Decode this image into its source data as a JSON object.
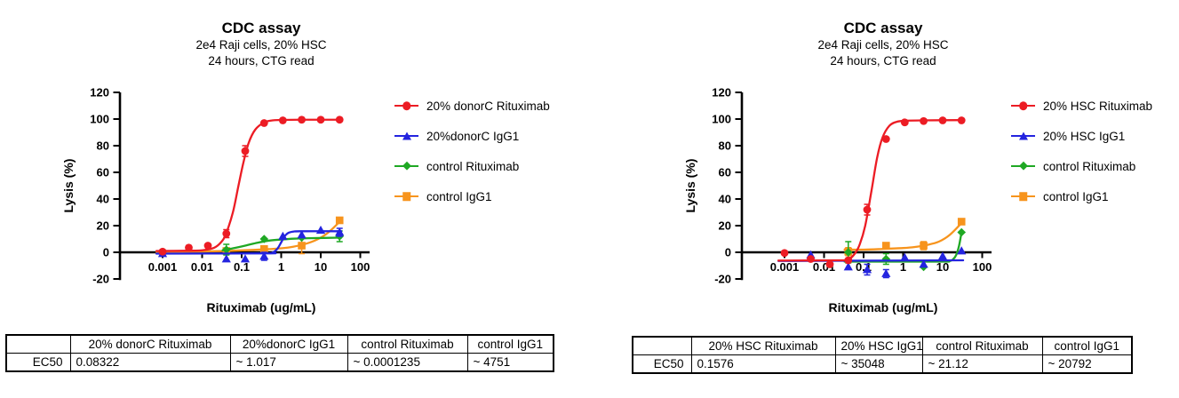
{
  "chart_data": [
    {
      "type": "line-scatter",
      "title": "CDC assay",
      "subtitle1": "2e4 Raji cells, 20% HSC",
      "subtitle2": "24 hours, CTG read",
      "xlabel": "Rituximab (ug/mL)",
      "ylabel": "Lysis (%)",
      "x_scale": "log",
      "xlim": [
        0.001,
        100
      ],
      "ylim": [
        -20,
        120
      ],
      "x_ticks": [
        0.001,
        0.01,
        0.1,
        1,
        10,
        100
      ],
      "x_tick_labels": [
        "0.001",
        "0.01",
        "0.1",
        "1",
        "10",
        "100"
      ],
      "y_ticks": [
        120,
        100,
        80,
        60,
        40,
        20,
        0,
        -20
      ],
      "grid": false,
      "legend_position": "right",
      "series": [
        {
          "name": "20% donorC Rituximab",
          "color": "#EC1C24",
          "marker": "circle",
          "points": [
            [
              0.001,
              0.5,
              0
            ],
            [
              0.0046,
              3.5,
              0
            ],
            [
              0.014,
              5,
              0
            ],
            [
              0.041,
              14,
              3
            ],
            [
              0.123,
              76,
              4
            ],
            [
              0.37,
              97,
              0
            ],
            [
              1.1,
              99,
              0
            ],
            [
              3.3,
              99.5,
              0
            ],
            [
              10,
              99.5,
              0
            ],
            [
              30,
              99.5,
              0
            ]
          ],
          "curve": [
            [
              0.0007,
              1
            ],
            [
              0.005,
              1.2
            ],
            [
              0.01,
              1.5
            ],
            [
              0.02,
              3.4
            ],
            [
              0.03,
              7.5
            ],
            [
              0.04,
              13.8
            ],
            [
              0.06,
              30
            ],
            [
              0.083,
              50
            ],
            [
              0.11,
              67
            ],
            [
              0.15,
              82
            ],
            [
              0.22,
              92
            ],
            [
              0.37,
              97.5
            ],
            [
              0.6,
              99
            ],
            [
              1,
              99.3
            ],
            [
              3,
              99.5
            ],
            [
              33,
              99.5
            ]
          ]
        },
        {
          "name": "20%donorC IgG1",
          "color": "#2424DF",
          "marker": "triangle",
          "points": [
            [
              0.001,
              -1,
              0
            ],
            [
              0.041,
              -5,
              0
            ],
            [
              0.123,
              -5,
              0
            ],
            [
              0.37,
              -3,
              3
            ],
            [
              1.1,
              12,
              0
            ],
            [
              3.3,
              13,
              0
            ],
            [
              10,
              16.5,
              0
            ],
            [
              30,
              15,
              3
            ]
          ],
          "curve": [
            [
              0.0007,
              -1
            ],
            [
              0.4,
              -0.8
            ],
            [
              0.6,
              -0.2
            ],
            [
              0.8,
              2.7
            ],
            [
              1,
              7.5
            ],
            [
              1.2,
              11.7
            ],
            [
              1.5,
              14.5
            ],
            [
              2,
              15.5
            ],
            [
              3,
              15.8
            ],
            [
              33,
              15.8
            ]
          ]
        },
        {
          "name": "control Rituximab",
          "color": "#1FA824",
          "marker": "diamond",
          "points": [
            [
              0.041,
              2,
              4
            ],
            [
              0.37,
              10,
              0
            ],
            [
              3.3,
              11,
              0
            ],
            [
              30,
              12,
              4
            ]
          ],
          "curve": [
            [
              0.033,
              1.5
            ],
            [
              0.06,
              3
            ],
            [
              0.13,
              5.2
            ],
            [
              0.25,
              7.2
            ],
            [
              0.5,
              8.8
            ],
            [
              1,
              9.6
            ],
            [
              2,
              10.2
            ],
            [
              5,
              10.6
            ],
            [
              33,
              11
            ]
          ]
        },
        {
          "name": "control IgG1",
          "color": "#F7941D",
          "marker": "square",
          "points": [
            [
              0.041,
              1,
              2
            ],
            [
              0.37,
              2.5,
              0
            ],
            [
              3.3,
              5,
              6
            ],
            [
              30,
              24,
              0
            ]
          ],
          "curve": [
            [
              0.0007,
              0.3
            ],
            [
              0.01,
              0.6
            ],
            [
              0.05,
              1.1
            ],
            [
              0.2,
              1.8
            ],
            [
              0.5,
              2.4
            ],
            [
              1,
              3
            ],
            [
              2,
              4.2
            ],
            [
              4,
              6.2
            ],
            [
              8,
              9.5
            ],
            [
              15,
              14.5
            ],
            [
              30,
              23
            ],
            [
              33,
              25
            ]
          ]
        }
      ],
      "ec50_table": {
        "row_label": "EC50",
        "columns": [
          "20% donorC Rituximab",
          "20%donorC IgG1",
          "control Rituximab",
          "control IgG1"
        ],
        "values": [
          "0.08322",
          "~ 1.017",
          "~ 0.0001235",
          "~ 4751"
        ]
      }
    },
    {
      "type": "line-scatter",
      "title": "CDC assay",
      "subtitle1": "2e4 Raji cells, 20% HSC",
      "subtitle2": "24 hours, CTG read",
      "xlabel": "Rituximab (ug/mL)",
      "ylabel": "Lysis (%)",
      "x_scale": "log",
      "xlim": [
        0.001,
        100
      ],
      "ylim": [
        -20,
        120
      ],
      "x_ticks": [
        0.001,
        0.01,
        0.1,
        1,
        10,
        100
      ],
      "x_tick_labels": [
        "0.001",
        "0.01",
        "0.1",
        "1",
        "10",
        "100"
      ],
      "y_ticks": [
        120,
        100,
        80,
        60,
        40,
        20,
        0,
        -20
      ],
      "grid": false,
      "legend_position": "right",
      "series": [
        {
          "name": "20% HSC Rituximab",
          "color": "#EC1C24",
          "marker": "circle",
          "points": [
            [
              0.001,
              -0.5,
              0
            ],
            [
              0.0046,
              -5,
              0
            ],
            [
              0.014,
              -9,
              0
            ],
            [
              0.041,
              -6,
              0
            ],
            [
              0.123,
              32,
              4
            ],
            [
              0.37,
              85,
              0
            ],
            [
              1.1,
              97.5,
              0
            ],
            [
              3.3,
              98.5,
              0
            ],
            [
              10,
              99,
              0
            ],
            [
              30,
              99,
              0
            ]
          ],
          "curve": [
            [
              0.0007,
              -6.2
            ],
            [
              0.02,
              -6
            ],
            [
              0.04,
              -5.5
            ],
            [
              0.06,
              -1
            ],
            [
              0.08,
              6
            ],
            [
              0.11,
              20
            ],
            [
              0.158,
              46
            ],
            [
              0.22,
              71
            ],
            [
              0.3,
              86
            ],
            [
              0.45,
              95
            ],
            [
              0.7,
              98
            ],
            [
              1.2,
              98.7
            ],
            [
              3,
              99
            ],
            [
              33,
              99.2
            ]
          ]
        },
        {
          "name": "20% HSC IgG1",
          "color": "#2424DF",
          "marker": "triangle",
          "points": [
            [
              0.0046,
              -2,
              0
            ],
            [
              0.041,
              -11,
              0
            ],
            [
              0.123,
              -13,
              4
            ],
            [
              0.37,
              -16,
              3
            ],
            [
              1.1,
              -4,
              0
            ],
            [
              3.3,
              -9,
              0
            ],
            [
              10,
              -3,
              0
            ],
            [
              30,
              1,
              0
            ]
          ],
          "curve": [
            [
              0.0007,
              -6.5
            ],
            [
              33,
              -6
            ]
          ]
        },
        {
          "name": "control Rituximab",
          "color": "#1FA824",
          "marker": "diamond",
          "points": [
            [
              0.041,
              0,
              8
            ],
            [
              0.37,
              -5,
              4
            ],
            [
              3.3,
              -11,
              0
            ],
            [
              30,
              15,
              0
            ]
          ],
          "curve": [
            [
              0.033,
              -7
            ],
            [
              8,
              -7
            ],
            [
              14,
              -6.8
            ],
            [
              18,
              -5.5
            ],
            [
              22,
              -2
            ],
            [
              26,
              5
            ],
            [
              30,
              15
            ]
          ]
        },
        {
          "name": "control IgG1",
          "color": "#F7941D",
          "marker": "square",
          "points": [
            [
              0.041,
              0.5,
              3
            ],
            [
              0.37,
              5,
              0
            ],
            [
              3.3,
              5,
              3
            ],
            [
              30,
              23,
              0
            ]
          ],
          "curve": [
            [
              0.033,
              2
            ],
            [
              0.1,
              2
            ],
            [
              0.3,
              2.5
            ],
            [
              1,
              3.2
            ],
            [
              2,
              4
            ],
            [
              4,
              5.5
            ],
            [
              8,
              8
            ],
            [
              15,
              13
            ],
            [
              30,
              22
            ],
            [
              33,
              24
            ]
          ]
        }
      ],
      "ec50_table": {
        "row_label": "EC50",
        "columns": [
          "20% HSC Rituximab",
          "20% HSC IgG1",
          "control Rituximab",
          "control IgG1"
        ],
        "values": [
          "0.1576",
          "~ 35048",
          "~ 21.12",
          "~ 20792"
        ]
      }
    }
  ]
}
